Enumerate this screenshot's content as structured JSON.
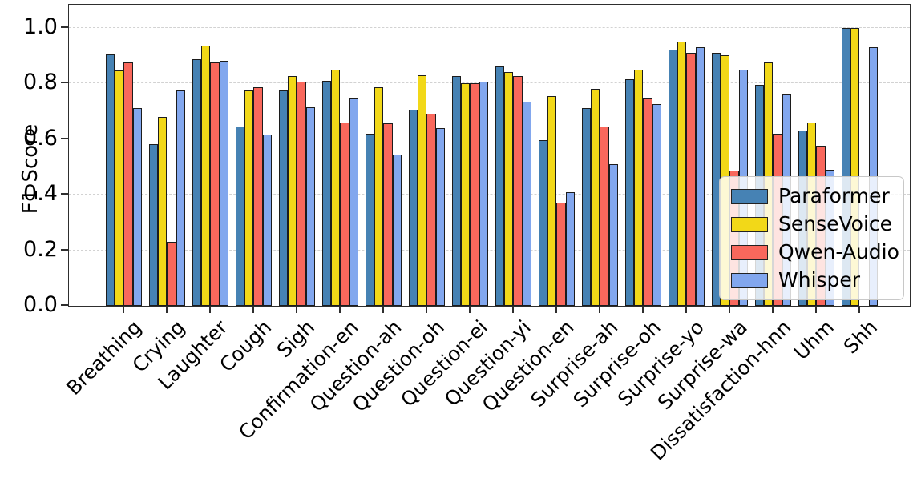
{
  "chart_data": {
    "type": "bar",
    "title": "",
    "xlabel": "",
    "ylabel": "F1 Score",
    "ylim": [
      0.0,
      1.08
    ],
    "ytick_labels": [
      "0.0",
      "0.2",
      "0.4",
      "0.6",
      "0.8",
      "1.0"
    ],
    "ytick_values": [
      0.0,
      0.2,
      0.4,
      0.6,
      0.8,
      1.0
    ],
    "grid": "horizontal-dashed",
    "legend_position": "lower right",
    "categories": [
      "Breathing",
      "Crying",
      "Laughter",
      "Cough",
      "Sigh",
      "Confirmation-en",
      "Question-ah",
      "Question-oh",
      "Question-ei",
      "Question-yi",
      "Question-en",
      "Surprise-ah",
      "Surprise-oh",
      "Surprise-yo",
      "Surprise-wa",
      "Dissatisfaction-hnn",
      "Uhm",
      "Shh"
    ],
    "series": [
      {
        "name": "Paraformer",
        "color": "#4682B4",
        "values": [
          0.905,
          0.58,
          0.885,
          0.645,
          0.775,
          0.81,
          0.62,
          0.705,
          0.825,
          0.86,
          0.595,
          0.71,
          0.815,
          0.92,
          0.91,
          0.795,
          0.63,
          1.0
        ]
      },
      {
        "name": "SenseVoice",
        "color": "#F2D818",
        "values": [
          0.845,
          0.68,
          0.935,
          0.775,
          0.825,
          0.85,
          0.785,
          0.83,
          0.8,
          0.84,
          0.755,
          0.78,
          0.85,
          0.95,
          0.9,
          0.875,
          0.66,
          1.0
        ]
      },
      {
        "name": "Qwen-Audio",
        "color": "#F9685C",
        "values": [
          0.875,
          0.23,
          0.875,
          0.785,
          0.805,
          0.66,
          0.655,
          0.69,
          0.8,
          0.825,
          0.37,
          0.645,
          0.745,
          0.91,
          0.485,
          0.62,
          0.575,
          0.0
        ]
      },
      {
        "name": "Whisper",
        "color": "#82A7EE",
        "values": [
          0.71,
          0.775,
          0.88,
          0.615,
          0.715,
          0.745,
          0.545,
          0.64,
          0.805,
          0.735,
          0.41,
          0.51,
          0.725,
          0.93,
          0.85,
          0.76,
          0.49,
          0.93
        ]
      }
    ]
  }
}
